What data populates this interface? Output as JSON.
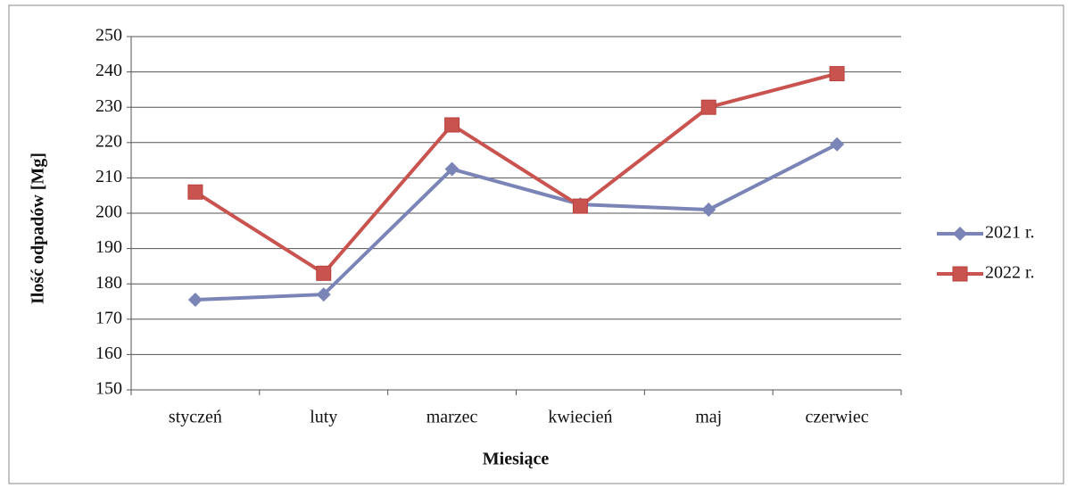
{
  "chart_data": {
    "type": "line",
    "x_label": "Miesiące",
    "y_label": "Ilość odpadów [Mg]",
    "categories": [
      "styczeń",
      "luty",
      "marzec",
      "kwiecień",
      "maj",
      "czerwiec"
    ],
    "series": [
      {
        "name": "2021 r.",
        "color": "#7b84b6",
        "marker": "diamond",
        "values": [
          175.5,
          177,
          212.5,
          202.5,
          201,
          219.5
        ]
      },
      {
        "name": "2022 r.",
        "color": "#c9534f",
        "marker": "square",
        "values": [
          206,
          183,
          225,
          202,
          230,
          239.5
        ]
      }
    ],
    "ylim": [
      150,
      250
    ],
    "yticks": [
      150,
      160,
      170,
      180,
      190,
      200,
      210,
      220,
      230,
      240,
      250
    ],
    "grid": true,
    "legend": "right"
  }
}
